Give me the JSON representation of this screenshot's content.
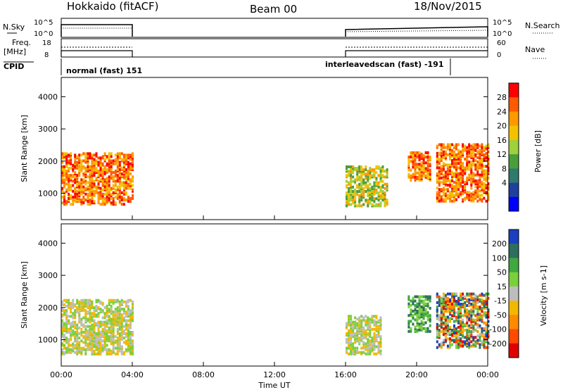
{
  "header": {
    "title": "Hokkaido (fitACF)",
    "beam": "Beam 00",
    "date": "18/Nov/2015"
  },
  "panels": {
    "nsky_label": "N.Sky",
    "nsky_ticks": [
      "10^5",
      "10^0"
    ],
    "nsearch_label": "N.Search",
    "nsearch_ticks": [
      "10^5",
      "10^0"
    ],
    "freq_label": "Freq.",
    "freq_unit": "[MHz]",
    "freq_ticks": [
      "18",
      "8"
    ],
    "nave_label": "Nave",
    "nave_ticks": [
      "60",
      "0"
    ],
    "cpid_label": "CPID",
    "cpid_segments": [
      "normal (fast) 151",
      "interleavedscan (fast) -191"
    ]
  },
  "chart_data": [
    {
      "type": "heatmap",
      "name": "power",
      "ylabel": "Slant Range [km]",
      "yticks": [
        "4000",
        "3000",
        "2000",
        "1000"
      ],
      "ylim": [
        180,
        4600
      ],
      "xlim": [
        0,
        24
      ],
      "colorbar": {
        "label": "Power [dB]",
        "ticks": [
          "28",
          "24",
          "20",
          "16",
          "12",
          "8",
          "4"
        ],
        "colors": [
          "#ff0000",
          "#ff5a00",
          "#ff9900",
          "#f2c200",
          "#9ed13a",
          "#4a9e3a",
          "#2e7a6e",
          "#2040a0",
          "#0000ff"
        ]
      },
      "regions": [
        {
          "t0": 0.0,
          "t1": 4.0,
          "r0": 700,
          "r1": 2300,
          "level": "high"
        },
        {
          "t0": 16.0,
          "t1": 18.3,
          "r0": 650,
          "r1": 1900,
          "level": "mid"
        },
        {
          "t0": 19.5,
          "t1": 20.8,
          "r0": 1450,
          "r1": 2350,
          "level": "high"
        },
        {
          "t0": 21.1,
          "t1": 24.0,
          "r0": 800,
          "r1": 2600,
          "level": "high"
        }
      ]
    },
    {
      "type": "heatmap",
      "name": "velocity",
      "ylabel": "Slant Range [km]",
      "yticks": [
        "4000",
        "3000",
        "2000",
        "1000"
      ],
      "ylim": [
        180,
        4600
      ],
      "xlim": [
        0,
        24
      ],
      "colorbar": {
        "label": "Velocity [m s-1]",
        "ticks": [
          "200",
          "100",
          "50",
          "15",
          "-15",
          "-50",
          "-100",
          "-200"
        ],
        "colors": [
          "#1a3fbf",
          "#2e6e5e",
          "#3fa83f",
          "#7ad03a",
          "#bdbdbd",
          "#f2b800",
          "#ff8a00",
          "#ff4a00",
          "#e00000"
        ]
      },
      "regions": [
        {
          "t0": 0.0,
          "t1": 4.0,
          "r0": 600,
          "r1": 2300,
          "level": "low"
        },
        {
          "t0": 16.0,
          "t1": 18.0,
          "r0": 600,
          "r1": 1800,
          "level": "low"
        },
        {
          "t0": 19.5,
          "t1": 20.8,
          "r0": 1300,
          "r1": 2400,
          "level": "pos"
        },
        {
          "t0": 21.1,
          "t1": 24.0,
          "r0": 800,
          "r1": 2500,
          "level": "mixed"
        }
      ]
    }
  ],
  "time_axis": {
    "ticks": [
      "00:00",
      "04:00",
      "08:00",
      "12:00",
      "16:00",
      "20:00",
      "00:00"
    ],
    "label": "Time UT"
  }
}
